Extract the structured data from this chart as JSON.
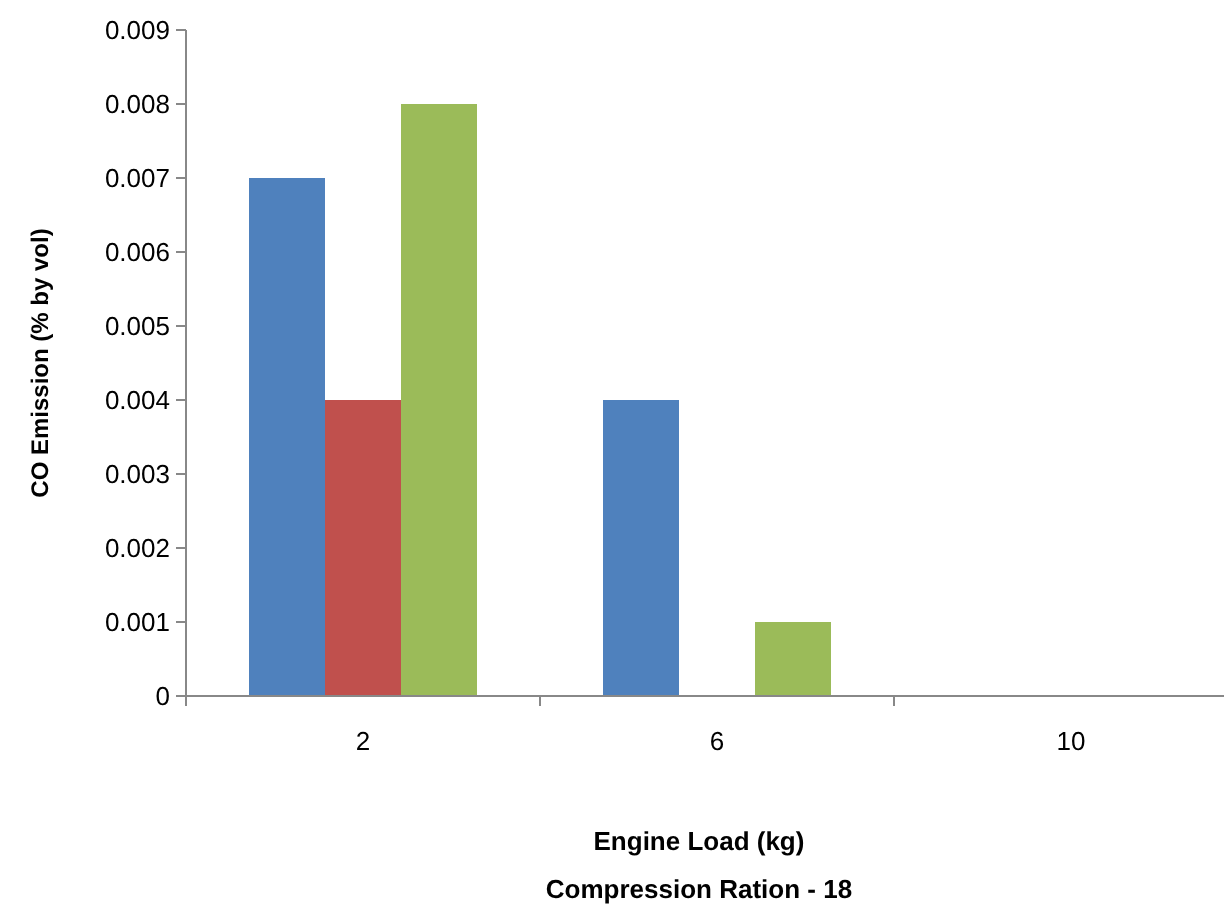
{
  "chart_data": {
    "type": "bar",
    "ylabel": "CO Emission  (% by vol)",
    "xlabel": "Engine Load (kg)",
    "annotations": [
      "Compression Ration - 18"
    ],
    "categories": [
      "2",
      "6",
      "10"
    ],
    "series": [
      {
        "color": "#4f81bd",
        "values": [
          0.007,
          0.004,
          0
        ]
      },
      {
        "color": "#c0504d",
        "values": [
          0.004,
          0,
          0
        ]
      },
      {
        "color": "#9bbb59",
        "values": [
          0.008,
          0.001,
          0
        ]
      }
    ],
    "ylim": [
      0,
      0.009
    ],
    "yticks": [
      0,
      0.001,
      0.002,
      0.003,
      0.004,
      0.005,
      0.006,
      0.007,
      0.008,
      0.009
    ],
    "grid": false
  }
}
